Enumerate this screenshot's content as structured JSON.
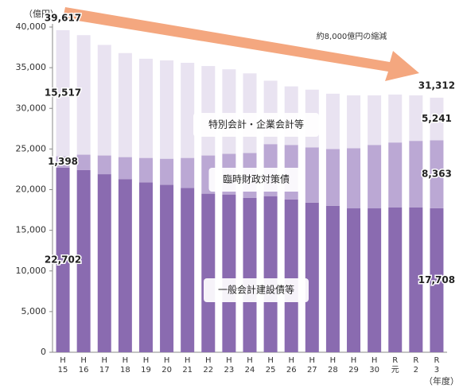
{
  "chart_data": {
    "type": "stacked_bar",
    "categories": [
      [
        "H",
        "15"
      ],
      [
        "H",
        "16"
      ],
      [
        "H",
        "17"
      ],
      [
        "H",
        "18"
      ],
      [
        "H",
        "19"
      ],
      [
        "H",
        "20"
      ],
      [
        "H",
        "21"
      ],
      [
        "H",
        "22"
      ],
      [
        "H",
        "23"
      ],
      [
        "H",
        "24"
      ],
      [
        "H",
        "25"
      ],
      [
        "H",
        "26"
      ],
      [
        "H",
        "27"
      ],
      [
        "H",
        "28"
      ],
      [
        "H",
        "29"
      ],
      [
        "H",
        "30"
      ],
      [
        "R",
        "元"
      ],
      [
        "R",
        "2"
      ],
      [
        "R",
        "3"
      ]
    ],
    "series": [
      {
        "name": "一般会計建設債等",
        "color": "#8a6bb0",
        "values": [
          22702,
          22400,
          21900,
          21300,
          20900,
          20600,
          20200,
          19500,
          19400,
          19000,
          19200,
          18800,
          18400,
          18000,
          17700,
          17700,
          17800,
          17800,
          17708
        ],
        "value_labels": [
          "22,702",
          null,
          null,
          null,
          null,
          null,
          null,
          null,
          null,
          null,
          null,
          null,
          null,
          null,
          null,
          null,
          null,
          null,
          "17,708"
        ]
      },
      {
        "name": "臨時財政対策債",
        "color": "#bba8d4",
        "values": [
          1398,
          1900,
          2300,
          2700,
          3000,
          3200,
          3700,
          4700,
          5000,
          5500,
          6400,
          6700,
          6800,
          7000,
          7400,
          7800,
          8000,
          8200,
          8363
        ],
        "value_labels": [
          "1,398",
          null,
          null,
          null,
          null,
          null,
          null,
          null,
          null,
          null,
          null,
          null,
          null,
          null,
          null,
          null,
          null,
          null,
          "8,363"
        ]
      },
      {
        "name": "特別会計・企業会計等",
        "color": "#e9e3f1",
        "values": [
          15517,
          14700,
          13600,
          12800,
          12200,
          12100,
          11700,
          11000,
          10400,
          9800,
          7800,
          7200,
          7100,
          6800,
          6500,
          6100,
          5900,
          5600,
          5241
        ],
        "value_labels": [
          "15,517",
          null,
          null,
          null,
          null,
          null,
          null,
          null,
          null,
          null,
          null,
          null,
          null,
          null,
          null,
          null,
          null,
          null,
          "5,241"
        ]
      }
    ],
    "totals": [
      39617,
      null,
      null,
      null,
      null,
      null,
      null,
      null,
      null,
      null,
      null,
      null,
      null,
      null,
      null,
      null,
      null,
      null,
      31312
    ],
    "total_labels": [
      "39,617",
      null,
      null,
      null,
      null,
      null,
      null,
      null,
      null,
      null,
      null,
      null,
      null,
      null,
      null,
      null,
      null,
      null,
      "31,312"
    ],
    "y_unit": "（億円）",
    "x_unit": "（年度）",
    "annotation": "約8,000億円の縮減",
    "ylim": [
      0,
      40000
    ],
    "yticks": [
      0,
      {
        "value": 5000,
        "label": "5,000"
      },
      {
        "value": 10000,
        "label": "10,000"
      },
      {
        "value": 15000,
        "label": "15,000"
      },
      {
        "value": 20000,
        "label": "20,000"
      },
      {
        "value": 25000,
        "label": "25,000"
      },
      {
        "value": 30000,
        "label": "30,000"
      },
      {
        "value": 35000,
        "label": "35,000"
      },
      {
        "value": 40000,
        "label": "40,000"
      }
    ]
  }
}
